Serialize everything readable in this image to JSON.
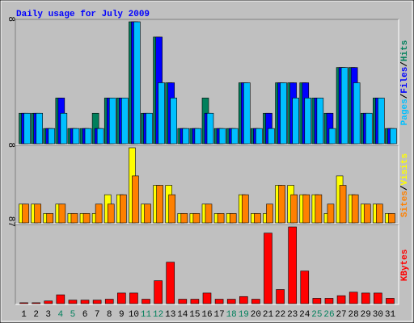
{
  "chart_data": {
    "type": "bar",
    "title": "Daily usage for July 2009",
    "categories": [
      "1",
      "2",
      "3",
      "4",
      "5",
      "6",
      "7",
      "8",
      "9",
      "10",
      "11",
      "12",
      "13",
      "14",
      "15",
      "16",
      "17",
      "18",
      "19",
      "20",
      "21",
      "22",
      "23",
      "24",
      "25",
      "26",
      "27",
      "28",
      "29",
      "30",
      "31"
    ],
    "weekend_days": [
      4,
      5,
      11,
      12,
      18,
      19,
      25,
      26
    ],
    "weekday_color": "#000000",
    "weekend_color": "#00805c",
    "legend_separator": "/",
    "panels": [
      {
        "ylim": [
          0,
          8
        ],
        "yticks": [
          8
        ],
        "series": [
          {
            "name": "Hits",
            "color": "#00805c",
            "values": [
              2,
              2,
              1,
              3,
              1,
              1,
              2,
              3,
              3,
              8,
              2,
              7,
              4,
              1,
              1,
              3,
              1,
              1,
              4,
              1,
              2,
              4,
              4,
              4,
              3,
              2,
              5,
              5,
              2,
              3,
              1
            ]
          },
          {
            "name": "Files",
            "color": "#0000ff",
            "values": [
              2,
              2,
              1,
              3,
              1,
              1,
              1,
              3,
              3,
              8,
              2,
              7,
              4,
              1,
              1,
              2,
              1,
              1,
              4,
              1,
              2,
              4,
              4,
              4,
              3,
              2,
              5,
              5,
              2,
              3,
              1
            ]
          },
          {
            "name": "Pages",
            "color": "#00c0ff",
            "values": [
              2,
              2,
              1,
              2,
              1,
              1,
              1,
              3,
              3,
              8,
              2,
              4,
              3,
              1,
              1,
              2,
              1,
              1,
              4,
              1,
              1,
              4,
              3,
              3,
              3,
              1,
              5,
              4,
              2,
              3,
              1
            ]
          }
        ]
      },
      {
        "ylim": [
          0,
          8
        ],
        "yticks": [
          8
        ],
        "series": [
          {
            "name": "Visits",
            "color": "#ffff00",
            "values": [
              2,
              2,
              1,
              2,
              1,
              1,
              1,
              3,
              3,
              8,
              2,
              4,
              4,
              1,
              1,
              2,
              1,
              1,
              3,
              1,
              1,
              4,
              4,
              3,
              3,
              1,
              5,
              3,
              2,
              2,
              1
            ]
          },
          {
            "name": "Sites",
            "color": "#ff8000",
            "values": [
              2,
              2,
              1,
              2,
              1,
              1,
              2,
              2,
              3,
              5,
              2,
              4,
              3,
              1,
              1,
              2,
              1,
              1,
              3,
              1,
              2,
              4,
              3,
              3,
              3,
              2,
              4,
              3,
              2,
              2,
              1
            ]
          }
        ]
      },
      {
        "ylim": [
          0,
          87
        ],
        "yticks": [
          87
        ],
        "series": [
          {
            "name": "KBytes",
            "color": "#ff0000",
            "values": [
              1,
              1,
              3,
              10,
              4,
              4,
              4,
              5,
              12,
              12,
              5,
              26,
              47,
              5,
              5,
              12,
              5,
              5,
              8,
              5,
              80,
              16,
              87,
              37,
              6,
              6,
              9,
              13,
              12,
              12,
              6
            ]
          }
        ]
      }
    ]
  }
}
